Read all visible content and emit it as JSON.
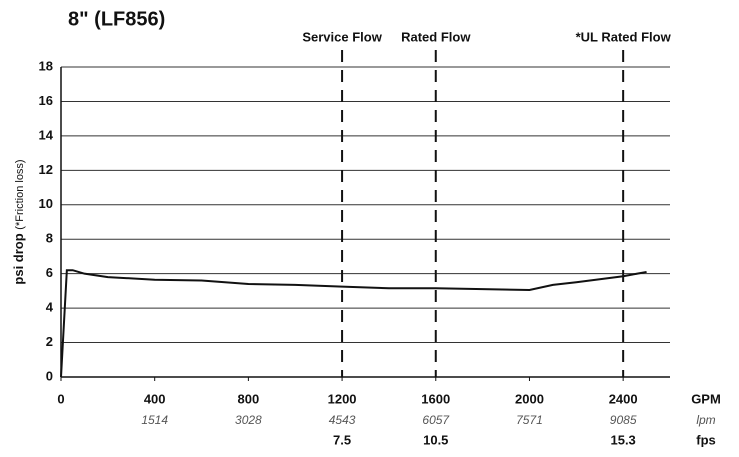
{
  "chart_data": {
    "type": "line",
    "title": "8\" (LF856)",
    "ylabel": "psi drop",
    "ylabel_note": "(*Friction loss)",
    "xlabel": "GPM",
    "xlim": [
      0,
      2600
    ],
    "xticks": [
      0,
      400,
      800,
      1200,
      1600,
      2000,
      2400
    ],
    "ylim": [
      0,
      18
    ],
    "yticks": [
      0,
      2,
      4,
      6,
      8,
      10,
      12,
      14,
      16,
      18
    ],
    "grid": true,
    "series": [
      {
        "name": null,
        "color": "#111111",
        "x": [
          0,
          25,
          50,
          100,
          200,
          400,
          600,
          800,
          1000,
          1200,
          1400,
          1600,
          1800,
          2000,
          2100,
          2200,
          2400,
          2500
        ],
        "values": [
          0,
          6.2,
          6.2,
          6.0,
          5.8,
          5.65,
          5.6,
          5.4,
          5.35,
          5.25,
          5.15,
          5.15,
          5.1,
          5.05,
          5.35,
          5.5,
          5.85,
          6.1
        ]
      }
    ],
    "vlines": [
      {
        "x": 1200,
        "label": "Service Flow"
      },
      {
        "x": 1600,
        "label": "Rated Flow"
      },
      {
        "x": 2400,
        "label": "*UL Rated Flow"
      }
    ],
    "secondary_axes": [
      {
        "label": "lpm",
        "x": [
          400,
          800,
          1200,
          1600,
          2000,
          2400
        ],
        "values": [
          1514,
          3028,
          4543,
          6057,
          7571,
          9085
        ]
      },
      {
        "label": "fps",
        "x": [
          1200,
          1600,
          2400
        ],
        "values": [
          7.5,
          10.5,
          15.3
        ]
      }
    ]
  }
}
